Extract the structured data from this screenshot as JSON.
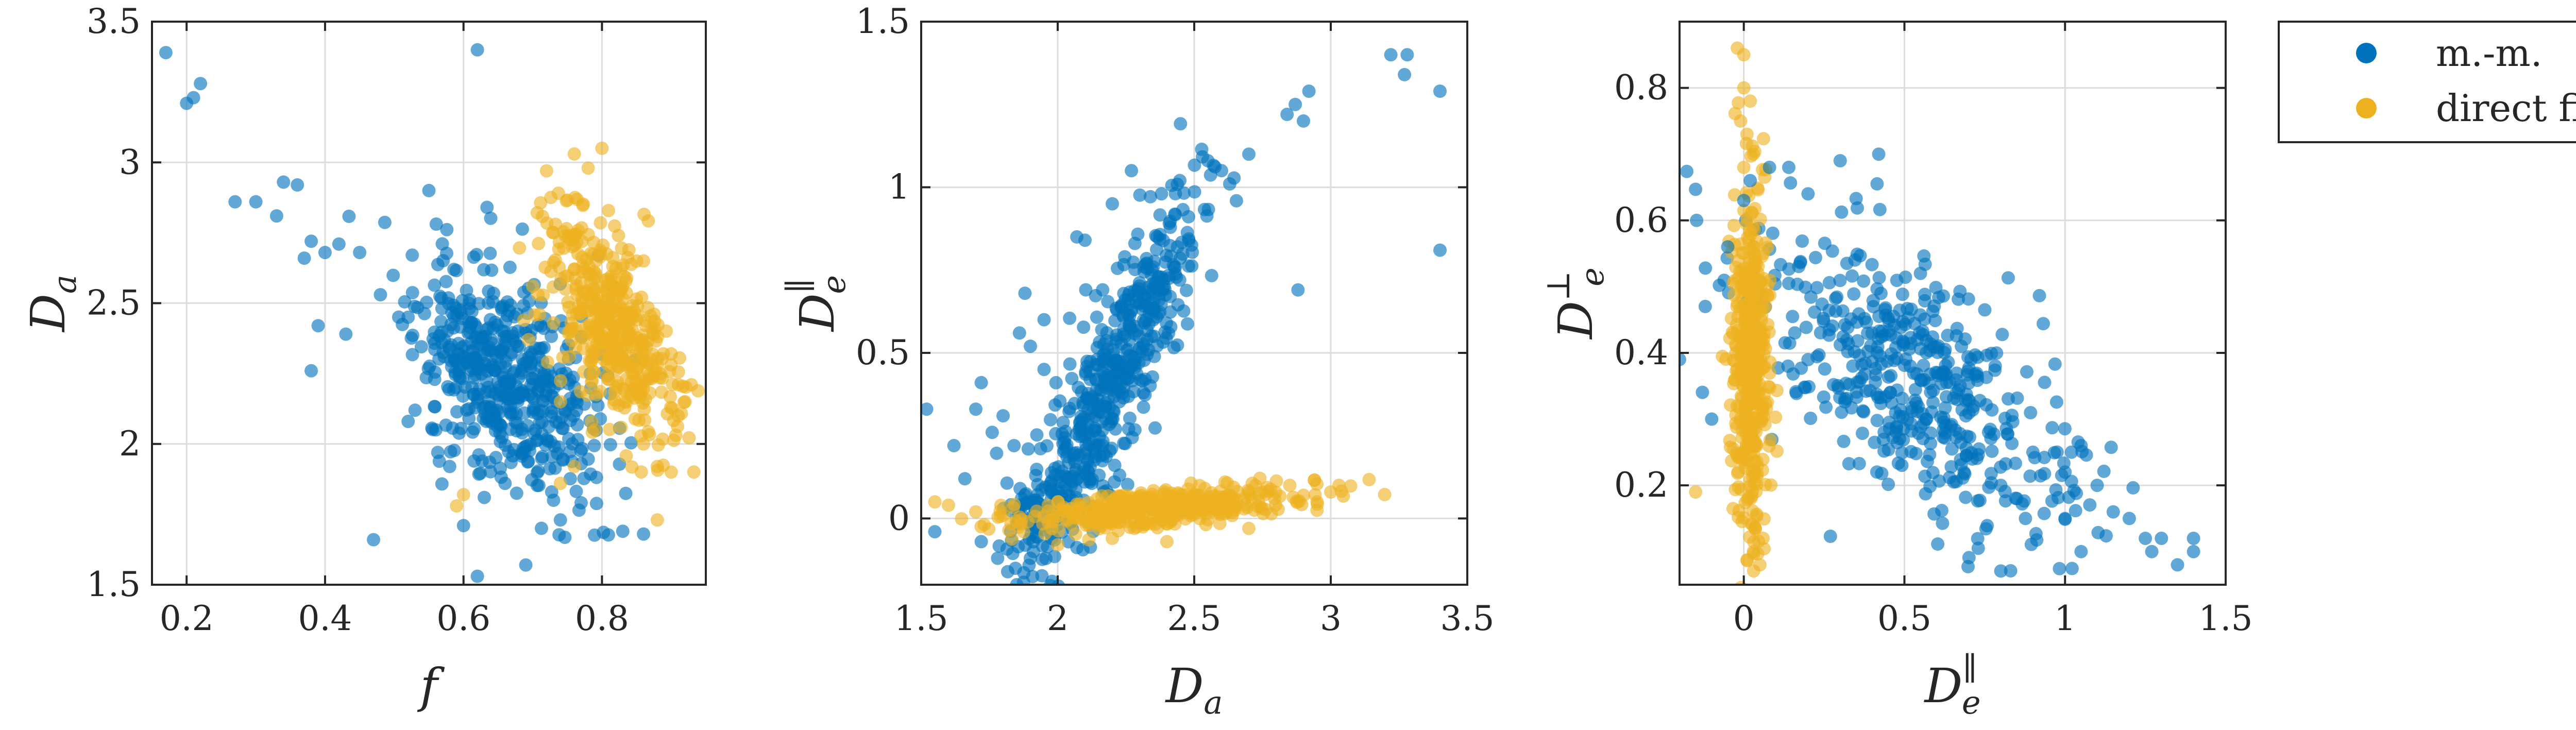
{
  "legend": {
    "position": "top-right",
    "entries": [
      {
        "label": "m.-m.",
        "color": "#0072BD"
      },
      {
        "label": "direct fiting",
        "color": "#EDB120"
      }
    ]
  },
  "chart_data": [
    {
      "type": "scatter",
      "xlabel": "f",
      "ylabel": {
        "base": "D",
        "sub": "a",
        "sup": ""
      },
      "xlim": [
        0.15,
        0.95
      ],
      "ylim": [
        1.5,
        3.5
      ],
      "xticks": [
        0.2,
        0.4,
        0.6,
        0.8
      ],
      "yticks": [
        1.5,
        2,
        2.5,
        3,
        3.5
      ],
      "xtick_labels": [
        "0.2",
        "0.4",
        "0.6",
        "0.8"
      ],
      "ytick_labels": [
        "1.5",
        "2",
        "2.5",
        "3",
        "3.5"
      ],
      "grid": true,
      "series": [
        {
          "name": "m.-m.",
          "color": "#0072BD",
          "points": [
            [
              0.17,
              3.39
            ],
            [
              0.21,
              3.23
            ],
            [
              0.22,
              3.28
            ],
            [
              0.2,
              3.21
            ],
            [
              0.27,
              2.86
            ],
            [
              0.3,
              2.86
            ],
            [
              0.34,
              2.93
            ],
            [
              0.36,
              2.92
            ],
            [
              0.33,
              2.81
            ],
            [
              0.38,
              2.72
            ],
            [
              0.4,
              2.68
            ],
            [
              0.42,
              2.71
            ],
            [
              0.45,
              2.68
            ],
            [
              0.37,
              2.66
            ],
            [
              0.39,
              2.42
            ],
            [
              0.38,
              2.26
            ],
            [
              0.43,
              2.39
            ],
            [
              0.48,
              2.53
            ],
            [
              0.52,
              2.45
            ],
            [
              0.55,
              2.9
            ],
            [
              0.62,
              3.4
            ],
            [
              0.47,
              1.66
            ],
            [
              0.62,
              1.53
            ],
            [
              0.69,
              1.57
            ],
            [
              0.74,
              1.73
            ],
            [
              0.83,
              1.69
            ],
            [
              0.86,
              1.68
            ],
            [
              0.6,
              1.71
            ],
            [
              0.63,
              1.81
            ],
            [
              0.66,
              1.86
            ],
            [
              0.73,
              1.8
            ],
            [
              0.77,
              1.93
            ],
            [
              0.56,
              2.05
            ],
            [
              0.58,
              1.92
            ],
            [
              0.53,
              2.12
            ],
            [
              0.52,
              2.08
            ]
          ]
        },
        {
          "name": "direct fiting",
          "color": "#EDB120",
          "points": [
            [
              0.76,
              3.03
            ],
            [
              0.78,
              2.98
            ],
            [
              0.72,
              2.97
            ],
            [
              0.8,
              3.05
            ],
            [
              0.73,
              2.75
            ],
            [
              0.76,
              2.62
            ],
            [
              0.7,
              2.56
            ],
            [
              0.71,
              2.46
            ],
            [
              0.73,
              2.43
            ],
            [
              0.86,
              2.65
            ],
            [
              0.9,
              2.32
            ],
            [
              0.92,
              2.15
            ],
            [
              0.91,
              2.1
            ],
            [
              0.88,
              1.92
            ],
            [
              0.9,
              1.9
            ],
            [
              0.88,
              1.73
            ],
            [
              0.86,
              2.0
            ],
            [
              0.82,
              2.2
            ],
            [
              0.79,
              2.05
            ],
            [
              0.74,
              2.15
            ],
            [
              0.76,
              1.92
            ],
            [
              0.74,
              1.86
            ],
            [
              0.6,
              1.82
            ],
            [
              0.59,
              1.78
            ]
          ]
        }
      ],
      "clusters": [
        {
          "series": 0,
          "cx": 0.66,
          "cy": 2.24,
          "sx": 0.065,
          "sy": 0.2,
          "rho": -0.45,
          "n": 520,
          "seed": 11
        },
        {
          "series": 1,
          "cx": 0.81,
          "cy": 2.42,
          "sx": 0.045,
          "sy": 0.2,
          "rho": -0.6,
          "n": 430,
          "seed": 23
        }
      ]
    },
    {
      "type": "scatter",
      "xlabel": {
        "base": "D",
        "sub": "a",
        "sup": ""
      },
      "ylabel": {
        "base": "D",
        "sub": "e",
        "sup": "∥"
      },
      "xlim": [
        1.5,
        3.5
      ],
      "ylim": [
        -0.2,
        1.5
      ],
      "xticks": [
        1.5,
        2,
        2.5,
        3,
        3.5
      ],
      "yticks": [
        0,
        0.5,
        1,
        1.5
      ],
      "xtick_labels": [
        "1.5",
        "2",
        "2.5",
        "3",
        "3.5"
      ],
      "ytick_labels": [
        "0",
        "0.5",
        "1",
        "1.5"
      ],
      "grid": true,
      "series": [
        {
          "name": "m.-m.",
          "color": "#0072BD",
          "points": [
            [
              1.52,
              0.33
            ],
            [
              1.55,
              -0.04
            ],
            [
              1.62,
              0.22
            ],
            [
              1.66,
              0.12
            ],
            [
              1.7,
              0.33
            ],
            [
              1.72,
              0.41
            ],
            [
              1.76,
              0.26
            ],
            [
              1.8,
              0.31
            ],
            [
              1.84,
              0.22
            ],
            [
              1.86,
              0.56
            ],
            [
              1.88,
              0.68
            ],
            [
              1.95,
              0.6
            ],
            [
              2.07,
              0.85
            ],
            [
              2.1,
              0.84
            ],
            [
              2.2,
              0.95
            ],
            [
              2.27,
              1.05
            ],
            [
              2.38,
              0.98
            ],
            [
              2.55,
              1.08
            ],
            [
              2.6,
              1.05
            ],
            [
              2.63,
              1.01
            ],
            [
              2.7,
              1.1
            ],
            [
              2.87,
              1.25
            ],
            [
              2.9,
              1.2
            ],
            [
              2.92,
              1.29
            ],
            [
              2.84,
              1.22
            ],
            [
              2.88,
              0.69
            ],
            [
              3.22,
              1.4
            ],
            [
              3.28,
              1.4
            ],
            [
              3.27,
              1.34
            ],
            [
              3.4,
              1.29
            ],
            [
              3.4,
              0.81
            ],
            [
              1.85,
              -0.2
            ],
            [
              1.78,
              -0.12
            ],
            [
              1.72,
              -0.07
            ],
            [
              1.9,
              -0.12
            ],
            [
              1.95,
              0.45
            ],
            [
              1.9,
              0.52
            ]
          ]
        },
        {
          "name": "direct fiting",
          "color": "#EDB120",
          "points": [
            [
              1.55,
              0.05
            ],
            [
              1.6,
              0.04
            ],
            [
              1.7,
              0.02
            ],
            [
              1.8,
              0.01
            ],
            [
              2.75,
              0.08
            ],
            [
              2.85,
              0.1
            ],
            [
              2.9,
              0.07
            ],
            [
              3.0,
              0.08
            ],
            [
              3.03,
              0.1
            ],
            [
              2.95,
              0.05
            ],
            [
              2.7,
              -0.03
            ],
            [
              2.4,
              -0.07
            ],
            [
              2.2,
              -0.06
            ],
            [
              2.0,
              -0.08
            ],
            [
              2.05,
              0.03
            ]
          ]
        }
      ],
      "clusters": [
        {
          "series": 0,
          "cx": 2.22,
          "cy": 0.45,
          "sx": 0.15,
          "sy": 0.27,
          "rho": 0.86,
          "n": 500,
          "seed": 37
        },
        {
          "series": 0,
          "cx": 1.93,
          "cy": 0.02,
          "sx": 0.06,
          "sy": 0.08,
          "rho": 0.2,
          "n": 70,
          "seed": 41
        },
        {
          "series": 1,
          "cx": 2.35,
          "cy": 0.03,
          "sx": 0.26,
          "sy": 0.032,
          "rho": 0.5,
          "n": 400,
          "seed": 53
        }
      ]
    },
    {
      "type": "scatter",
      "xlabel": {
        "base": "D",
        "sub": "e",
        "sup": "∥"
      },
      "ylabel": {
        "base": "D",
        "sub": "e",
        "sup": "⊥"
      },
      "xlim": [
        -0.2,
        1.5
      ],
      "ylim": [
        0.05,
        0.9
      ],
      "xticks": [
        0,
        0.5,
        1,
        1.5
      ],
      "yticks": [
        0.2,
        0.4,
        0.6,
        0.8
      ],
      "xtick_labels": [
        "0",
        "0.5",
        "1",
        "1.5"
      ],
      "ytick_labels": [
        "0.2",
        "0.4",
        "0.6",
        "0.8"
      ],
      "grid": true,
      "series": [
        {
          "name": "m.-m.",
          "color": "#0072BD",
          "points": [
            [
              -0.2,
              0.39
            ],
            [
              -0.12,
              0.47
            ],
            [
              -0.1,
              0.3
            ],
            [
              -0.05,
              0.56
            ],
            [
              0.0,
              0.63
            ],
            [
              0.02,
              0.66
            ],
            [
              0.08,
              0.68
            ],
            [
              0.14,
              0.68
            ],
            [
              0.2,
              0.64
            ],
            [
              0.3,
              0.69
            ],
            [
              0.42,
              0.7
            ],
            [
              0.55,
              0.52
            ],
            [
              0.9,
              0.25
            ],
            [
              1.0,
              0.22
            ],
            [
              1.02,
              0.25
            ],
            [
              1.05,
              0.26
            ],
            [
              1.1,
              0.2
            ],
            [
              1.15,
              0.16
            ],
            [
              1.2,
              0.15
            ],
            [
              1.25,
              0.12
            ],
            [
              1.27,
              0.1
            ],
            [
              1.3,
              0.12
            ],
            [
              1.35,
              0.08
            ],
            [
              1.4,
              0.12
            ],
            [
              1.4,
              0.1
            ],
            [
              1.05,
              0.1
            ],
            [
              1.0,
              0.15
            ],
            [
              0.85,
              0.18
            ],
            [
              0.8,
              0.2
            ]
          ]
        },
        {
          "name": "direct fiting",
          "color": "#EDB120",
          "points": [
            [
              -0.02,
              0.86
            ],
            [
              0.0,
              0.85
            ],
            [
              0.0,
              0.8
            ],
            [
              0.02,
              0.78
            ],
            [
              -0.01,
              0.75
            ],
            [
              0.01,
              0.73
            ],
            [
              0.03,
              0.7
            ],
            [
              0.0,
              0.68
            ],
            [
              -0.15,
              0.19
            ],
            [
              0.05,
              0.08
            ],
            [
              0.03,
              0.1
            ],
            [
              0.06,
              0.12
            ]
          ]
        }
      ],
      "clusters": [
        {
          "series": 0,
          "cx": 0.52,
          "cy": 0.36,
          "sx": 0.26,
          "sy": 0.11,
          "rho": -0.65,
          "n": 480,
          "seed": 67
        },
        {
          "series": 1,
          "cx": 0.02,
          "cy": 0.38,
          "sx": 0.03,
          "sy": 0.13,
          "rho": 0.0,
          "n": 430,
          "seed": 79
        }
      ]
    }
  ]
}
